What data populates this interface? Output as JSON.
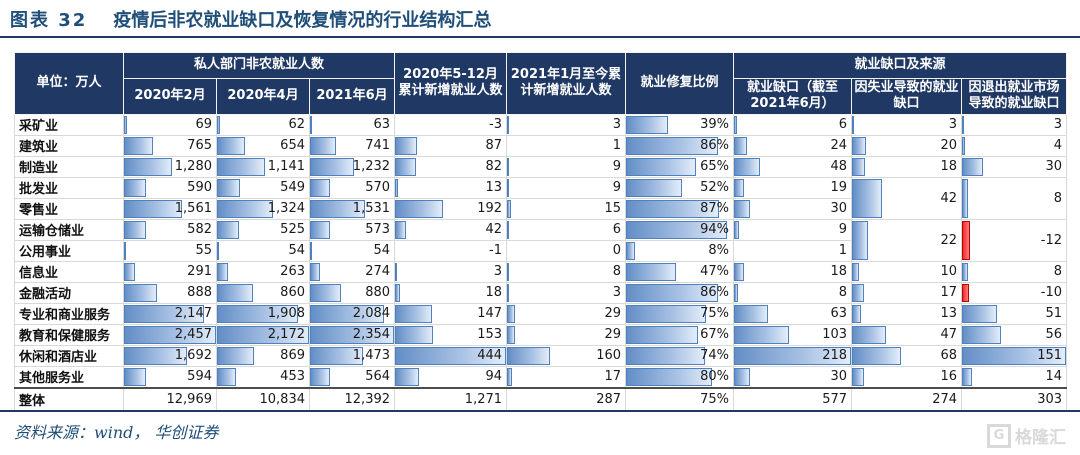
{
  "title": {
    "prefix": "图表 32",
    "text": "疫情后非农就业缺口及恢复情况的行业结构汇总"
  },
  "source_text": "资料来源：wind， 华创证券",
  "watermark": {
    "icon": "G",
    "label": "格隆汇"
  },
  "colors": {
    "header_bg": "#1f3864",
    "title_text": "#1f4e79",
    "bar_blue": "#638ec6",
    "bar_blue_border": "#4f81bd",
    "bar_red": "#ee2b2b",
    "rule": "#1f3864",
    "watermark_gray": "#d9d9d9"
  },
  "chart_data": {
    "type": "table",
    "title": "图表 32 疫情后非农就业缺口及恢复情况的行业结构汇总",
    "unit": "单位：万人",
    "column_groups": [
      "私人部门非农就业人数",
      "就业缺口及来源"
    ],
    "columns": [
      "2020年2月",
      "2020年4月",
      "2021年6月",
      "2020年5-12月累计新增就业人数",
      "2021年1月至今累计新增就业人数",
      "就业修复比例",
      "就业缺口（截至2021年6月）",
      "因失业导致的就业缺口",
      "因退出就业市场导致的就业缺口"
    ],
    "bar_max": [
      2457,
      2172,
      2354,
      444,
      444,
      100,
      218,
      151,
      151
    ],
    "dashed_cols": [
      3,
      4,
      7,
      8
    ],
    "rows": [
      {
        "label": "采矿业",
        "cells": [
          "69",
          "62",
          "63",
          "-3",
          "3",
          "39%",
          "6",
          "3",
          "3"
        ]
      },
      {
        "label": "建筑业",
        "cells": [
          "765",
          "654",
          "741",
          "87",
          "1",
          "86%",
          "24",
          "20",
          "4"
        ]
      },
      {
        "label": "制造业",
        "cells": [
          "1,280",
          "1,141",
          "1,232",
          "82",
          "9",
          "65%",
          "48",
          "18",
          "30"
        ]
      },
      {
        "label": "批发业",
        "cells": [
          "590",
          "549",
          "570",
          "13",
          "9",
          "52%",
          "19",
          {
            "v": "42",
            "span": 2
          },
          {
            "v": "8",
            "span": 2
          }
        ]
      },
      {
        "label": "零售业",
        "cells": [
          "1,561",
          "1,324",
          "1,531",
          "192",
          "15",
          "87%",
          "30",
          null,
          null
        ]
      },
      {
        "label": "运输仓储业",
        "cells": [
          "582",
          "525",
          "573",
          "42",
          "6",
          "94%",
          "9",
          {
            "v": "22",
            "span": 2
          },
          {
            "v": "-12",
            "span": 2
          }
        ]
      },
      {
        "label": "公用事业",
        "cells": [
          "55",
          "54",
          "54",
          "-1",
          "0",
          "8%",
          "1",
          null,
          null
        ]
      },
      {
        "label": "信息业",
        "cells": [
          "291",
          "263",
          "274",
          "3",
          "8",
          "47%",
          "18",
          "10",
          "8"
        ]
      },
      {
        "label": "金融活动",
        "cells": [
          "888",
          "860",
          "880",
          "18",
          "3",
          "86%",
          "8",
          "17",
          "-10"
        ]
      },
      {
        "label": "专业和商业服务",
        "cells": [
          "2,147",
          "1,908",
          "2,084",
          "147",
          "29",
          "75%",
          "63",
          "13",
          "51"
        ]
      },
      {
        "label": "教育和保健服务",
        "cells": [
          "2,457",
          "2,172",
          "2,354",
          "153",
          "29",
          "67%",
          "103",
          "47",
          "56"
        ]
      },
      {
        "label": "休闲和酒店业",
        "cells": [
          "1,692",
          "869",
          "1,473",
          "444",
          "160",
          "74%",
          "218",
          "68",
          "151"
        ]
      },
      {
        "label": "其他服务业",
        "cells": [
          "594",
          "453",
          "564",
          "94",
          "17",
          "80%",
          "30",
          "16",
          "14"
        ]
      }
    ],
    "total_row": {
      "label": "整体",
      "cells": [
        "12,969",
        "10,834",
        "12,392",
        "1,271",
        "287",
        "75%",
        "577",
        "274",
        "303"
      ]
    }
  }
}
